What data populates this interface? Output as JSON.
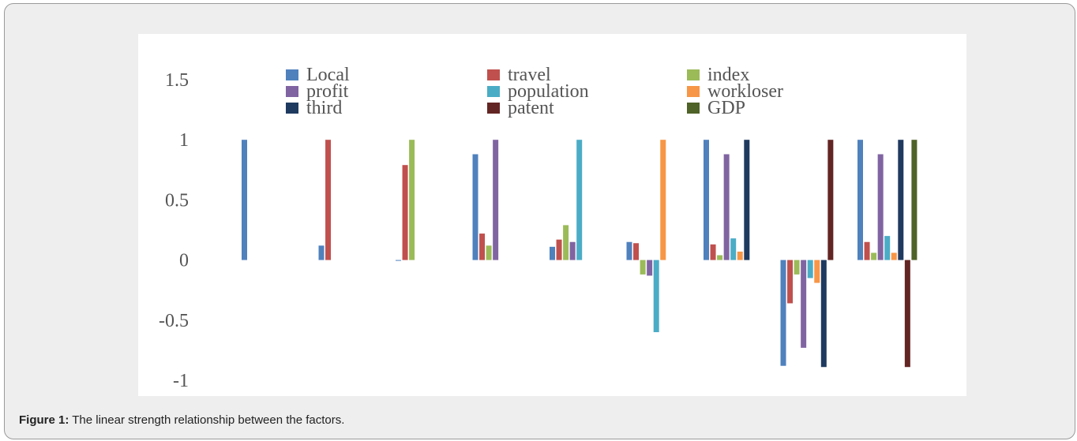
{
  "figure": {
    "label": "Figure 1:",
    "caption": " The linear strength relationship between the factors."
  },
  "chart_data": {
    "type": "bar",
    "title": "",
    "xlabel": "",
    "ylabel": "",
    "ylim": [
      -1,
      1.5
    ],
    "yticks": [
      {
        "value": 1.5,
        "label": "1.5"
      },
      {
        "value": 1,
        "label": "1"
      },
      {
        "value": 0.5,
        "label": "0.5"
      },
      {
        "value": 0,
        "label": "0"
      },
      {
        "value": -0.5,
        "label": "-0.5"
      },
      {
        "value": -1,
        "label": "-1"
      }
    ],
    "grid": false,
    "legend_position": "top",
    "group_count": 9,
    "series": [
      {
        "name": "Local",
        "color": "#4f81bd",
        "values": [
          1,
          0.12,
          0,
          0.88,
          0.11,
          0.15,
          1,
          -0.88,
          1
        ]
      },
      {
        "name": "travel",
        "color": "#c0504d",
        "values": [
          null,
          1,
          0.79,
          0.22,
          0.17,
          0.14,
          0.13,
          -0.36,
          0.15
        ]
      },
      {
        "name": "index",
        "color": "#9bbb59",
        "values": [
          null,
          null,
          1,
          0.12,
          0.29,
          -0.12,
          0.04,
          -0.12,
          0.06
        ]
      },
      {
        "name": "profit",
        "color": "#8064a2",
        "values": [
          null,
          null,
          null,
          1,
          0.15,
          -0.13,
          0.88,
          -0.73,
          0.88
        ]
      },
      {
        "name": "population",
        "color": "#4bacc6",
        "values": [
          null,
          null,
          null,
          null,
          1,
          -0.6,
          0.18,
          -0.15,
          0.2
        ]
      },
      {
        "name": "workloser",
        "color": "#f79646",
        "values": [
          null,
          null,
          null,
          null,
          null,
          1,
          0.07,
          -0.19,
          0.06
        ]
      },
      {
        "name": "third",
        "color": "#1f3a5f",
        "values": [
          null,
          null,
          null,
          null,
          null,
          null,
          1,
          -0.89,
          1
        ]
      },
      {
        "name": "patent",
        "color": "#632523",
        "values": [
          null,
          null,
          null,
          null,
          null,
          null,
          null,
          1,
          -0.89
        ]
      },
      {
        "name": "GDP",
        "color": "#4f6228",
        "values": [
          null,
          null,
          null,
          null,
          null,
          null,
          null,
          null,
          1
        ]
      }
    ]
  }
}
